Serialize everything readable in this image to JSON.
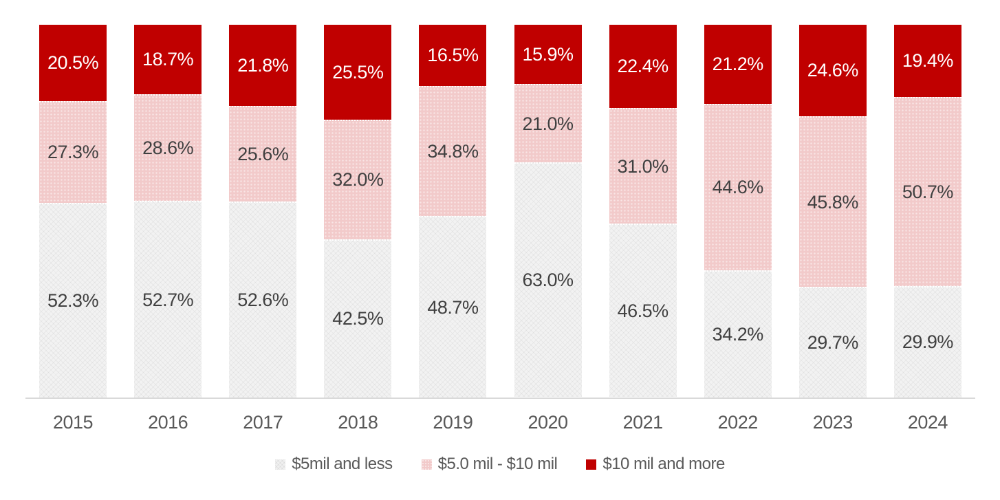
{
  "chart_data": {
    "type": "bar",
    "subtype": "stacked-100-percent",
    "title": "",
    "xlabel": "",
    "ylabel": "",
    "ylim": [
      0,
      100
    ],
    "grid": false,
    "legend_position": "bottom",
    "value_suffix": "%",
    "axis_line_color": "#D9D9D9",
    "category_label_color": "#595959",
    "categories": [
      "2015",
      "2016",
      "2017",
      "2018",
      "2019",
      "2020",
      "2021",
      "2022",
      "2023",
      "2024"
    ],
    "series": [
      {
        "name": "$5mil and less",
        "key": "gray",
        "color": "#F2F2F2",
        "pattern": "herringbone",
        "label_color": "#404040",
        "values": [
          52.3,
          52.7,
          52.6,
          42.5,
          48.7,
          63.0,
          46.5,
          34.2,
          29.7,
          29.9
        ]
      },
      {
        "name": "$5.0 mil - $10 mil",
        "key": "pink",
        "color": "#F2CACA",
        "pattern": "dots",
        "label_color": "#404040",
        "values": [
          27.3,
          28.6,
          25.6,
          32.0,
          34.8,
          21.0,
          31.0,
          44.6,
          45.8,
          50.7
        ]
      },
      {
        "name": "$10 mil and more",
        "key": "red",
        "color": "#C00000",
        "pattern": "solid",
        "label_color": "#FFFFFF",
        "values": [
          20.5,
          18.7,
          21.8,
          25.5,
          16.5,
          15.9,
          22.4,
          21.2,
          24.6,
          19.4
        ]
      }
    ],
    "stack_order_bottom_to_top": [
      "$5mil and less",
      "$5.0 mil - $10 mil",
      "$10 mil and more"
    ]
  }
}
